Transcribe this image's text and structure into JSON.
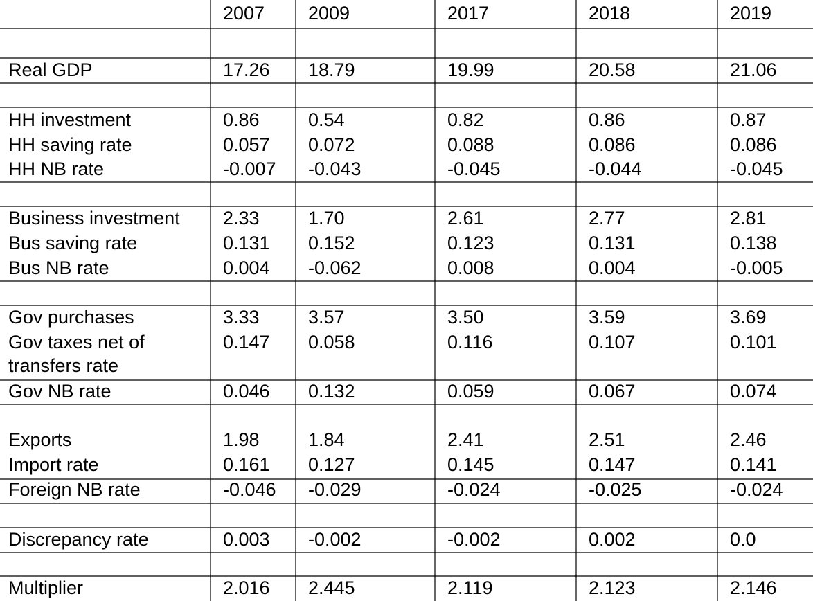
{
  "table": {
    "columns": [
      "2007",
      "2009",
      "2017",
      "2018",
      "2019"
    ],
    "rows": [
      {
        "label": "Real GDP",
        "values": [
          "17.26",
          "18.79",
          "19.99",
          "20.58",
          "21.06"
        ]
      },
      {
        "label": "HH investment",
        "values": [
          "0.86",
          "0.54",
          "0.82",
          "0.86",
          "0.87"
        ]
      },
      {
        "label": "HH saving rate",
        "values": [
          "0.057",
          "0.072",
          "0.088",
          "0.086",
          "0.086"
        ]
      },
      {
        "label": "HH NB rate",
        "values": [
          "-0.007",
          "-0.043",
          "-0.045",
          "-0.044",
          "-0.045"
        ]
      },
      {
        "label": "Business investment",
        "values": [
          "2.33",
          "1.70",
          "2.61",
          "2.77",
          "2.81"
        ]
      },
      {
        "label": "Bus saving rate",
        "values": [
          "0.131",
          "0.152",
          "0.123",
          "0.131",
          "0.138"
        ]
      },
      {
        "label": "Bus NB rate",
        "values": [
          "0.004",
          "-0.062",
          "0.008",
          "0.004",
          "-0.005"
        ]
      },
      {
        "label": "Gov purchases",
        "values": [
          "3.33",
          "3.57",
          "3.50",
          "3.59",
          "3.69"
        ]
      },
      {
        "label": "Gov taxes net of transfers rate",
        "values": [
          "0.147",
          "0.058",
          "0.116",
          "0.107",
          "0.101"
        ]
      },
      {
        "label": "Gov NB rate",
        "values": [
          "0.046",
          "0.132",
          "0.059",
          "0.067",
          "0.074"
        ]
      },
      {
        "label": "Exports",
        "values": [
          "1.98",
          "1.84",
          "2.41",
          "2.51",
          "2.46"
        ]
      },
      {
        "label": "Import rate",
        "values": [
          "0.161",
          "0.127",
          "0.145",
          "0.147",
          "0.141"
        ]
      },
      {
        "label": "Foreign NB rate",
        "values": [
          "-0.046",
          "-0.029",
          "-0.024",
          "-0.025",
          "-0.024"
        ]
      },
      {
        "label": "Discrepancy rate",
        "values": [
          "0.003",
          "-0.002",
          "-0.002",
          "0.002",
          "0.0"
        ]
      },
      {
        "label": "Multiplier",
        "values": [
          "2.016",
          "2.445",
          "2.119",
          "2.123",
          "2.146"
        ]
      }
    ]
  }
}
